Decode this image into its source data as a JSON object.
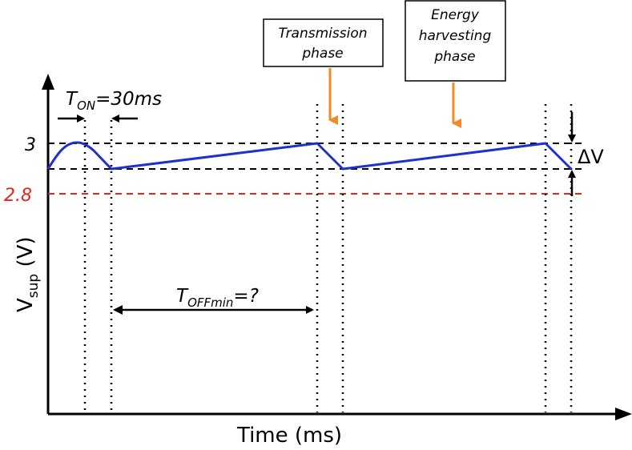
{
  "colors": {
    "axis": "#000000",
    "waveform": "#1f2fd0",
    "minimum_line": "#e8231f",
    "phase_arrow": "#f28a28"
  },
  "labels": {
    "x_axis": "Time (ms)",
    "y_axis_main": "V",
    "y_axis_sub": "sup",
    "y_axis_unit": "(V)",
    "level_high": "3",
    "level_min": "2.8",
    "t_on_main": "T",
    "t_on_sub": "ON",
    "t_on_value": "=30ms",
    "t_off_main": "T",
    "t_off_sub": "OFFmin",
    "t_off_value": "=?",
    "delta_v": "ΔV"
  },
  "callouts": {
    "transmission": [
      "Transmission",
      "phase"
    ],
    "harvesting": [
      "Energy",
      "harvesting",
      "phase"
    ]
  }
}
